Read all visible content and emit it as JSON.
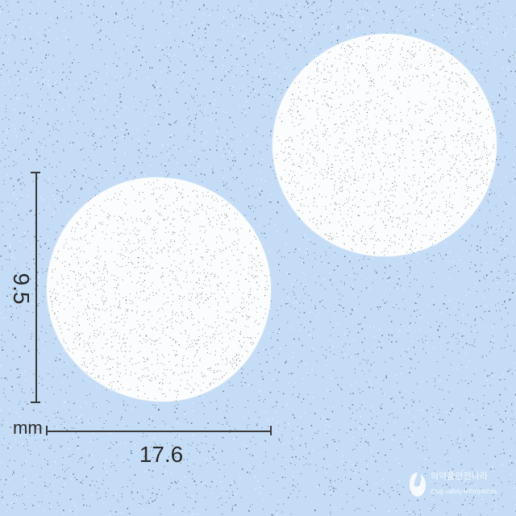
{
  "dimensions": {
    "height_value": "9.5",
    "width_value": "17.6",
    "unit": "mm"
  },
  "watermark": {
    "title": "의약품안전나라",
    "subtitle": "drug safety information",
    "icon": "mfds-logo-icon"
  },
  "colors": {
    "background": "#c4dcf6",
    "tablet": "#fbfcfd",
    "dimension_lines": "#3a3a3a"
  }
}
